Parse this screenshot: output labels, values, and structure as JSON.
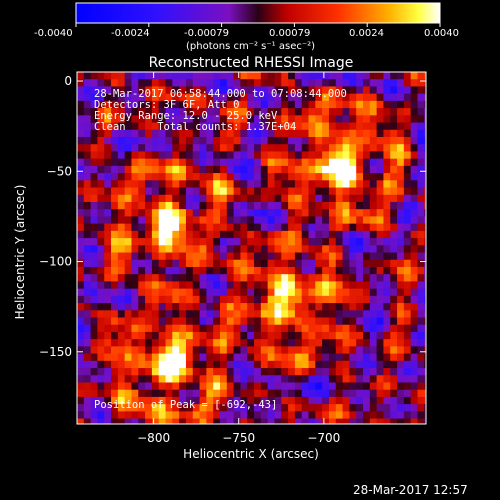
{
  "window": {
    "timestamp": "28-Mar-2017 12:57"
  },
  "colorbar": {
    "tick_labels": [
      "-0.0040",
      "-0.0024",
      "-0.00079",
      "0.00079",
      "0.0024",
      "0.0040"
    ],
    "unit_label": "(photons cm⁻² s⁻¹ asec⁻²)",
    "range": [
      -0.004,
      0.004
    ]
  },
  "chart_data": {
    "type": "heatmap",
    "title": "Reconstructed RHESSI Image",
    "xlabel": "Heliocentric X (arcsec)",
    "ylabel": "Heliocentric Y (arcsec)",
    "xlim": [
      -845,
      -640
    ],
    "ylim": [
      -190,
      5
    ],
    "x_ticks": [
      -800,
      -750,
      -700
    ],
    "y_ticks": [
      0,
      -50,
      -100,
      -150
    ],
    "colormap": "blue-purple-red-yellow-white",
    "value_range": [
      -0.004,
      0.004
    ],
    "sources": [
      {
        "x": -794,
        "y": -77,
        "strength": 0.0034
      },
      {
        "x": -794,
        "y": -155,
        "strength": 0.004
      },
      {
        "x": -692,
        "y": -43,
        "strength": 0.004,
        "peak": true
      },
      {
        "x": -722,
        "y": -120,
        "strength": 0.0036
      }
    ],
    "annotations": [
      "28-Mar-2017 06:58:44.000 to 07:08:44.000",
      "Detectors: 3F 6F, Att 0",
      "Energy Range: 12.0 - 25.0 keV",
      "Clean     Total counts: 1.37E+04",
      "Position of Peak = [-692,-43]"
    ]
  }
}
